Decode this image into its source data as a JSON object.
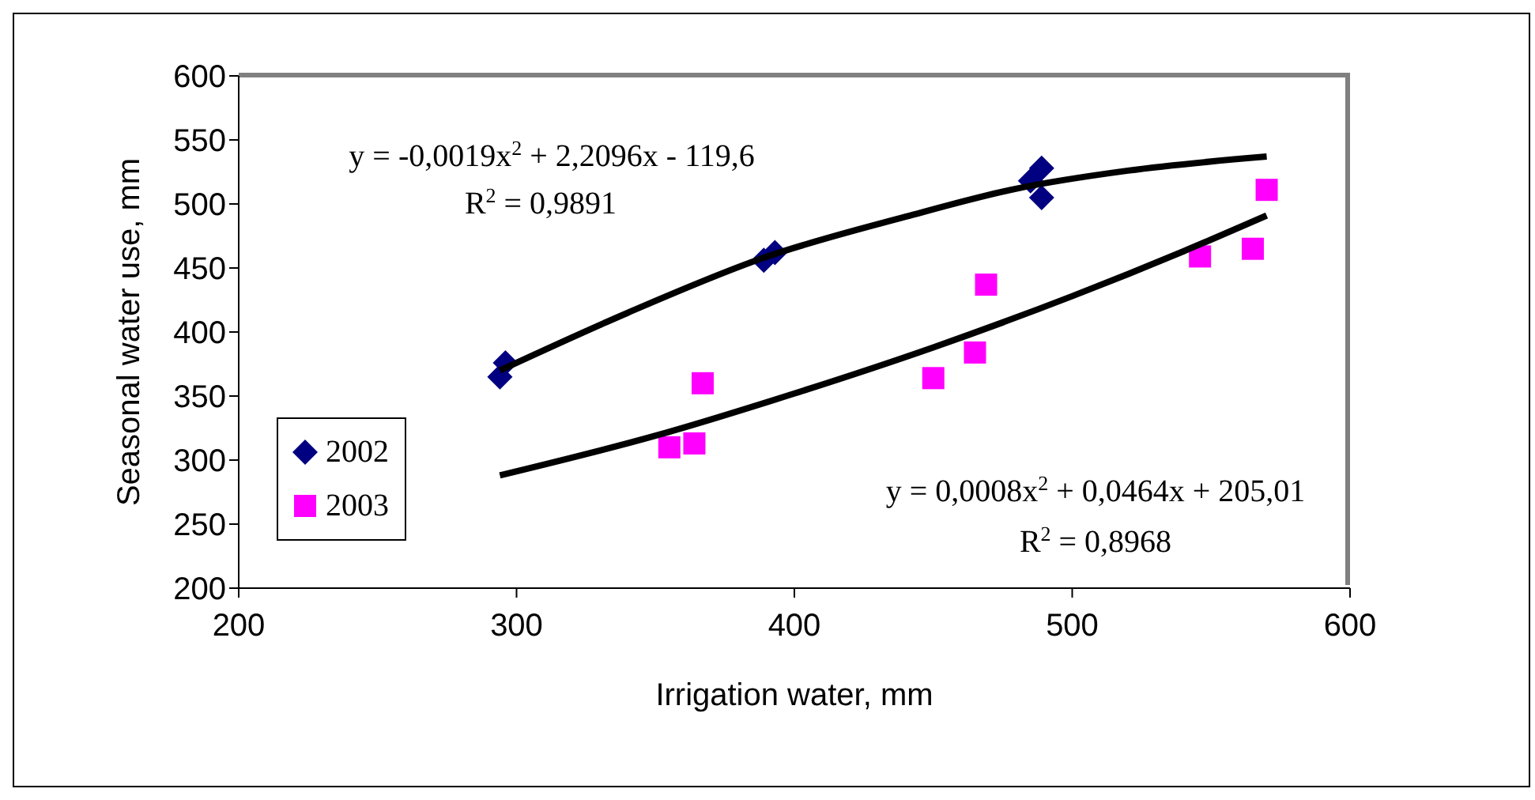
{
  "chart_data": {
    "type": "scatter",
    "xlabel": "Irrigation water, mm",
    "ylabel": "Seasonal water use, mm",
    "xlim": [
      200,
      600
    ],
    "xticks": [
      200,
      300,
      400,
      500,
      600
    ],
    "ylim": [
      200,
      600
    ],
    "yticks": [
      200,
      250,
      300,
      350,
      400,
      450,
      500,
      550,
      600
    ],
    "legend": "left",
    "annotations": [
      "y = -0,0019x$^{2}$ + 2,2096x - 119,6",
      "R$^{2}$ = 0,9891",
      "y = 0,0008x$^{2}$ + 0,0464x + 205,01",
      "R$^{2}$ = 0,8968"
    ],
    "series": [
      {
        "name": "2002",
        "color": "#000080",
        "marker": "diamond",
        "x": [
          294,
          296,
          389,
          393,
          485,
          489,
          489
        ],
        "values": [
          365,
          376,
          456,
          462,
          518,
          528,
          505
        ]
      },
      {
        "name": "2003",
        "color": "#ff00ff",
        "marker": "square",
        "x": [
          355,
          364,
          367,
          450,
          465,
          469,
          546,
          565,
          570
        ],
        "values": [
          310,
          313,
          360,
          364,
          384,
          437,
          459,
          465,
          511
        ]
      },
      {
        "type": "line",
        "color": "#000000",
        "marker": "none",
        "x": [
          294,
          340,
          389,
          440,
          480,
          520,
          570
        ],
        "values": [
          370,
          415,
          458,
          490,
          512,
          526,
          537
        ]
      },
      {
        "type": "line",
        "color": "#000000",
        "marker": "none",
        "x": [
          294,
          350,
          400,
          450,
          500,
          540,
          570
        ],
        "values": [
          288,
          319,
          352,
          388,
          428,
          463,
          491
        ]
      }
    ]
  }
}
